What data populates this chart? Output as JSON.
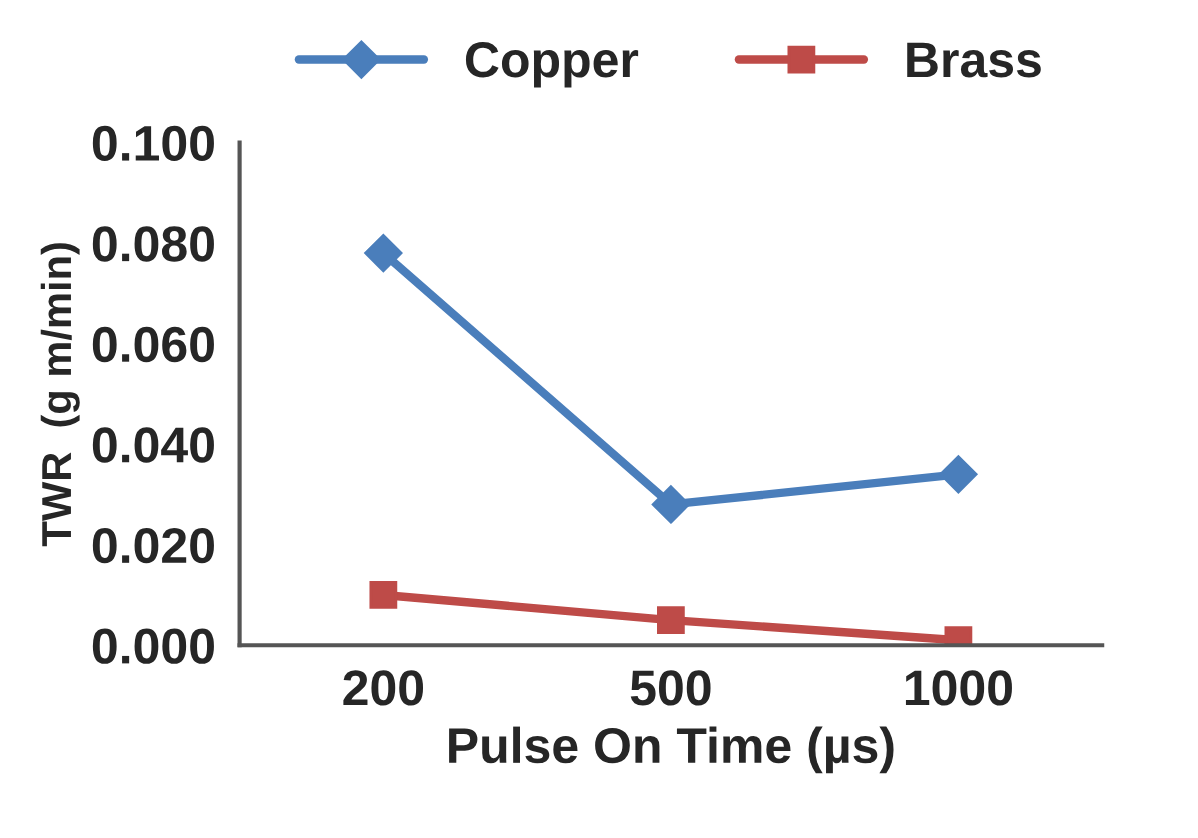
{
  "chart_data": {
    "type": "line",
    "xlabel": "Pulse On Time (µs)",
    "ylabel": "TWR  (g m/min)",
    "categories": [
      "200",
      "500",
      "1000"
    ],
    "series": [
      {
        "name": "Copper",
        "color": "#4a7ebb",
        "marker": "diamond",
        "values": [
          0.078,
          0.028,
          0.034
        ]
      },
      {
        "name": "Brass",
        "color": "#be4b48",
        "marker": "square",
        "values": [
          0.01,
          0.005,
          0.001
        ]
      }
    ],
    "ylim": [
      0,
      0.1
    ],
    "yticks": [
      {
        "value": 0,
        "label": "0.000"
      },
      {
        "value": 0.02,
        "label": "0.020"
      },
      {
        "value": 0.04,
        "label": "0.040"
      },
      {
        "value": 0.06,
        "label": "0.060"
      },
      {
        "value": 0.08,
        "label": "0.080"
      },
      {
        "value": 0.1,
        "label": "0.100"
      }
    ],
    "grid": false,
    "legend": "top",
    "line_style": "solid"
  }
}
